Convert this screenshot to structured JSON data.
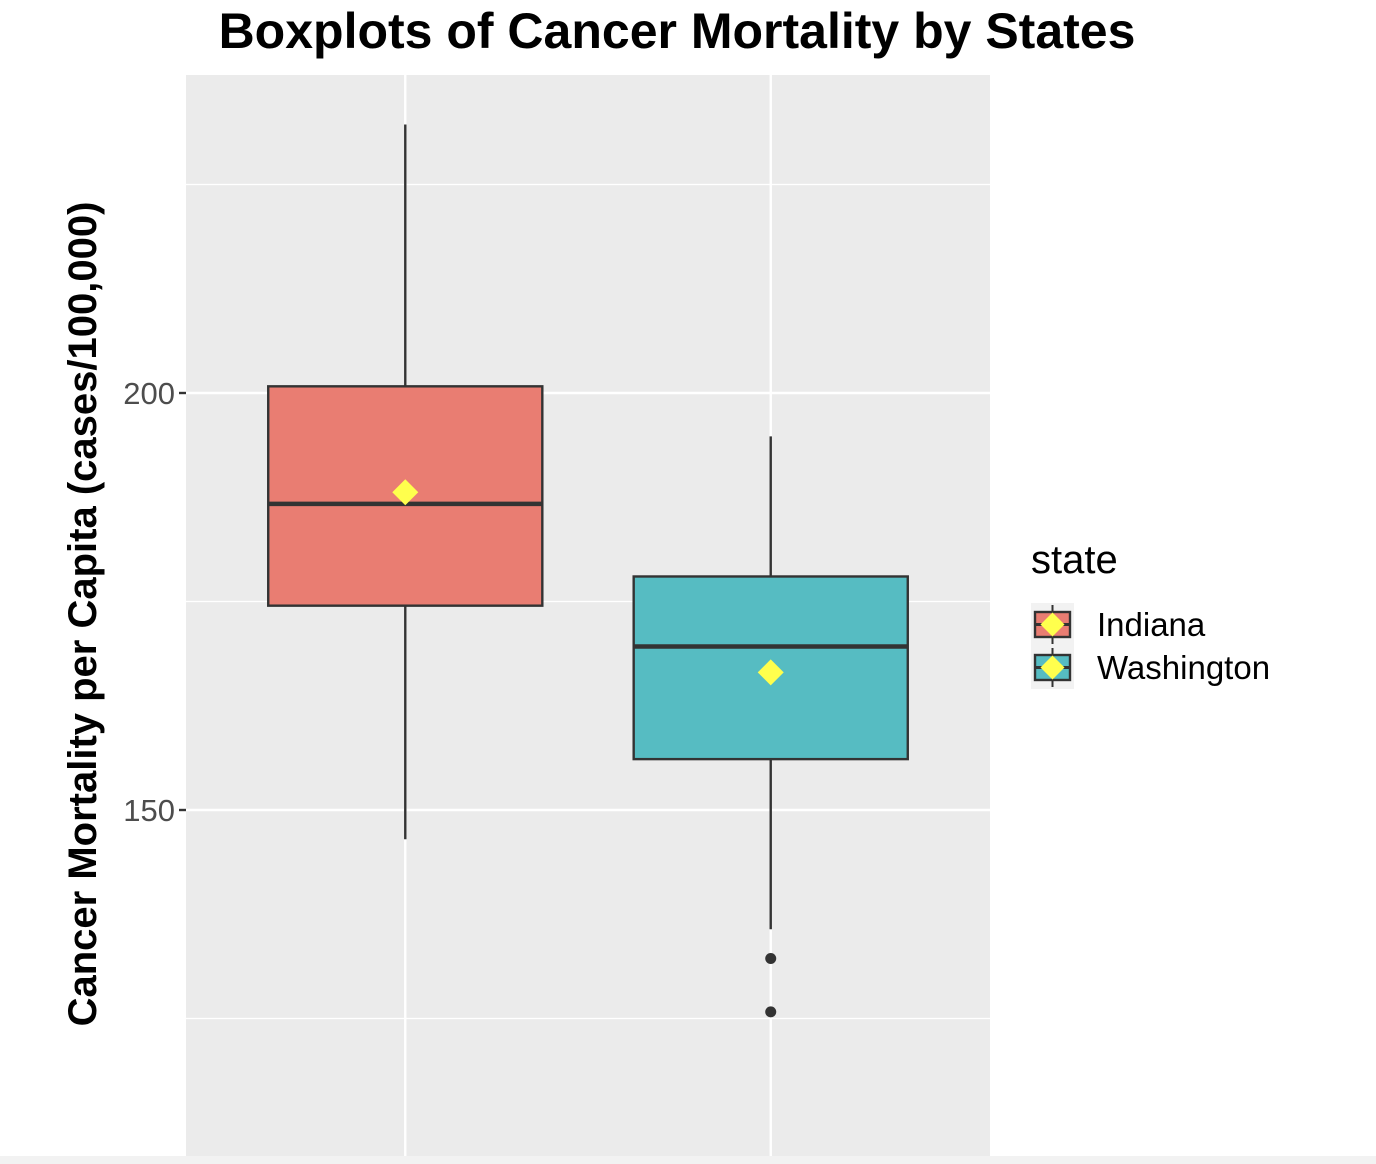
{
  "chart_data": {
    "type": "boxplot",
    "title": "Boxplots of Cancer Mortality by States",
    "xlabel": "",
    "ylabel": "Cancer Mortality per Capita (cases/100,000)",
    "y_ticks": [
      150,
      200
    ],
    "ylim": [
      110.0,
      242.0
    ],
    "grid": true,
    "legend": {
      "title": "state",
      "placement": "right"
    },
    "categories": [
      "Indiana",
      "Washington"
    ],
    "series": [
      {
        "name": "Indiana",
        "color": "#E97D72",
        "whisker_low": 146.5,
        "q1": 174.5,
        "median": 186.7,
        "q3": 200.8,
        "whisker_high": 232.2,
        "mean": 188.1,
        "outliers": []
      },
      {
        "name": "Washington",
        "color": "#56BCC2",
        "whisker_low": 135.7,
        "q1": 156.1,
        "median": 169.6,
        "q3": 178.0,
        "whisker_high": 194.8,
        "mean": 166.5,
        "outliers": [
          132.2,
          125.8
        ]
      }
    ],
    "mean_marker_color": "#FFFF4D"
  }
}
